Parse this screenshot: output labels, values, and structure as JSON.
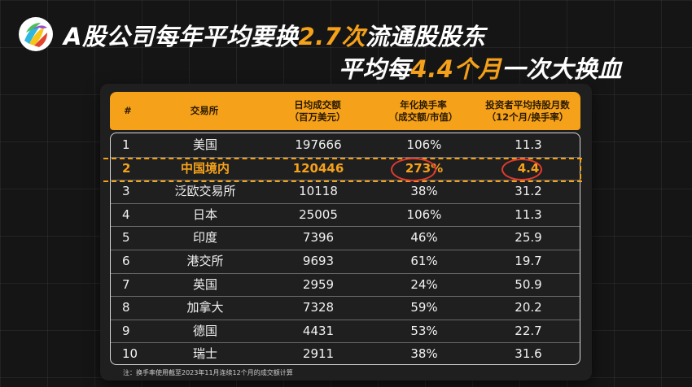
{
  "title": {
    "line1_prefix": "A股公司每年平均要换",
    "line1_highlight": "2.7次",
    "line1_suffix": "流通股股东",
    "line2_prefix": "平均每",
    "line2_highlight": "4.4个月",
    "line2_suffix": "一次大换血"
  },
  "table": {
    "headers": [
      {
        "line1": "#",
        "line2": ""
      },
      {
        "line1": "交易所",
        "line2": ""
      },
      {
        "line1": "日均成交额",
        "line2": "（百万美元）"
      },
      {
        "line1": "年化换手率",
        "line2": "（成交额/市值）"
      },
      {
        "line1": "投资者平均持股月数",
        "line2": "（12个月/换手率）"
      }
    ],
    "rows": [
      {
        "idx": "1",
        "exchange": "美国",
        "volume": "197666",
        "turnover": "106%",
        "months": "11.3"
      },
      {
        "idx": "2",
        "exchange": "中国境内",
        "volume": "120446",
        "turnover": "273%",
        "months": "4.4"
      },
      {
        "idx": "3",
        "exchange": "泛欧交易所",
        "volume": "10118",
        "turnover": "38%",
        "months": "31.2"
      },
      {
        "idx": "4",
        "exchange": "日本",
        "volume": "25005",
        "turnover": "106%",
        "months": "11.3"
      },
      {
        "idx": "5",
        "exchange": "印度",
        "volume": "7396",
        "turnover": "46%",
        "months": "25.9"
      },
      {
        "idx": "6",
        "exchange": "港交所",
        "volume": "9693",
        "turnover": "61%",
        "months": "19.7"
      },
      {
        "idx": "7",
        "exchange": "英国",
        "volume": "2959",
        "turnover": "24%",
        "months": "50.9"
      },
      {
        "idx": "8",
        "exchange": "加拿大",
        "volume": "7328",
        "turnover": "59%",
        "months": "20.2"
      },
      {
        "idx": "9",
        "exchange": "德国",
        "volume": "4431",
        "turnover": "53%",
        "months": "22.7"
      },
      {
        "idx": "10",
        "exchange": "瑞士",
        "volume": "2911",
        "turnover": "38%",
        "months": "31.6"
      }
    ],
    "highlight_row_index": 1
  },
  "note": "注：换手率使用截至2023年11月连续12个月的成交额计算",
  "colors": {
    "accent": "#f5a11a",
    "circle": "#e23a2e",
    "background": "#151515"
  },
  "icons": {
    "logo": "multicolor-flower-logo"
  }
}
